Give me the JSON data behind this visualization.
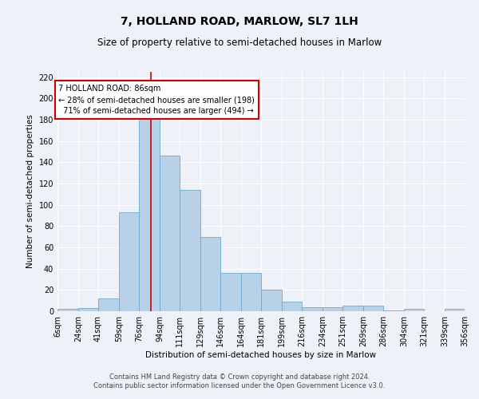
{
  "title": "7, HOLLAND ROAD, MARLOW, SL7 1LH",
  "subtitle": "Size of property relative to semi-detached houses in Marlow",
  "xlabel": "Distribution of semi-detached houses by size in Marlow",
  "ylabel": "Number of semi-detached properties",
  "footer_line1": "Contains HM Land Registry data © Crown copyright and database right 2024.",
  "footer_line2": "Contains public sector information licensed under the Open Government Licence v3.0.",
  "bin_edges": [
    6,
    24,
    41,
    59,
    76,
    94,
    111,
    129,
    146,
    164,
    181,
    199,
    216,
    234,
    251,
    269,
    286,
    304,
    321,
    339,
    356
  ],
  "bin_labels": [
    "6sqm",
    "24sqm",
    "41sqm",
    "59sqm",
    "76sqm",
    "94sqm",
    "111sqm",
    "129sqm",
    "146sqm",
    "164sqm",
    "181sqm",
    "199sqm",
    "216sqm",
    "234sqm",
    "251sqm",
    "269sqm",
    "286sqm",
    "304sqm",
    "321sqm",
    "339sqm",
    "356sqm"
  ],
  "bar_heights": [
    2,
    3,
    12,
    93,
    184,
    146,
    114,
    70,
    36,
    36,
    20,
    9,
    4,
    4,
    5,
    5,
    1,
    2,
    0,
    2
  ],
  "bar_color": "#b8d0e8",
  "bar_edge_color": "#6aaad4",
  "property_size": 86,
  "property_label": "7 HOLLAND ROAD: 86sqm",
  "pct_smaller": 28,
  "pct_smaller_count": 198,
  "pct_larger": 71,
  "pct_larger_count": 494,
  "vline_color": "#cc0000",
  "annotation_box_color": "#cc0000",
  "ylim": [
    0,
    225
  ],
  "yticks": [
    0,
    20,
    40,
    60,
    80,
    100,
    120,
    140,
    160,
    180,
    200,
    220
  ],
  "bg_color": "#eef2f8",
  "plot_bg_color": "#eef2f8",
  "grid_color": "#ffffff",
  "title_fontsize": 10,
  "subtitle_fontsize": 8.5,
  "axis_label_fontsize": 7.5,
  "tick_fontsize": 7,
  "annotation_fontsize": 7,
  "footer_fontsize": 6
}
